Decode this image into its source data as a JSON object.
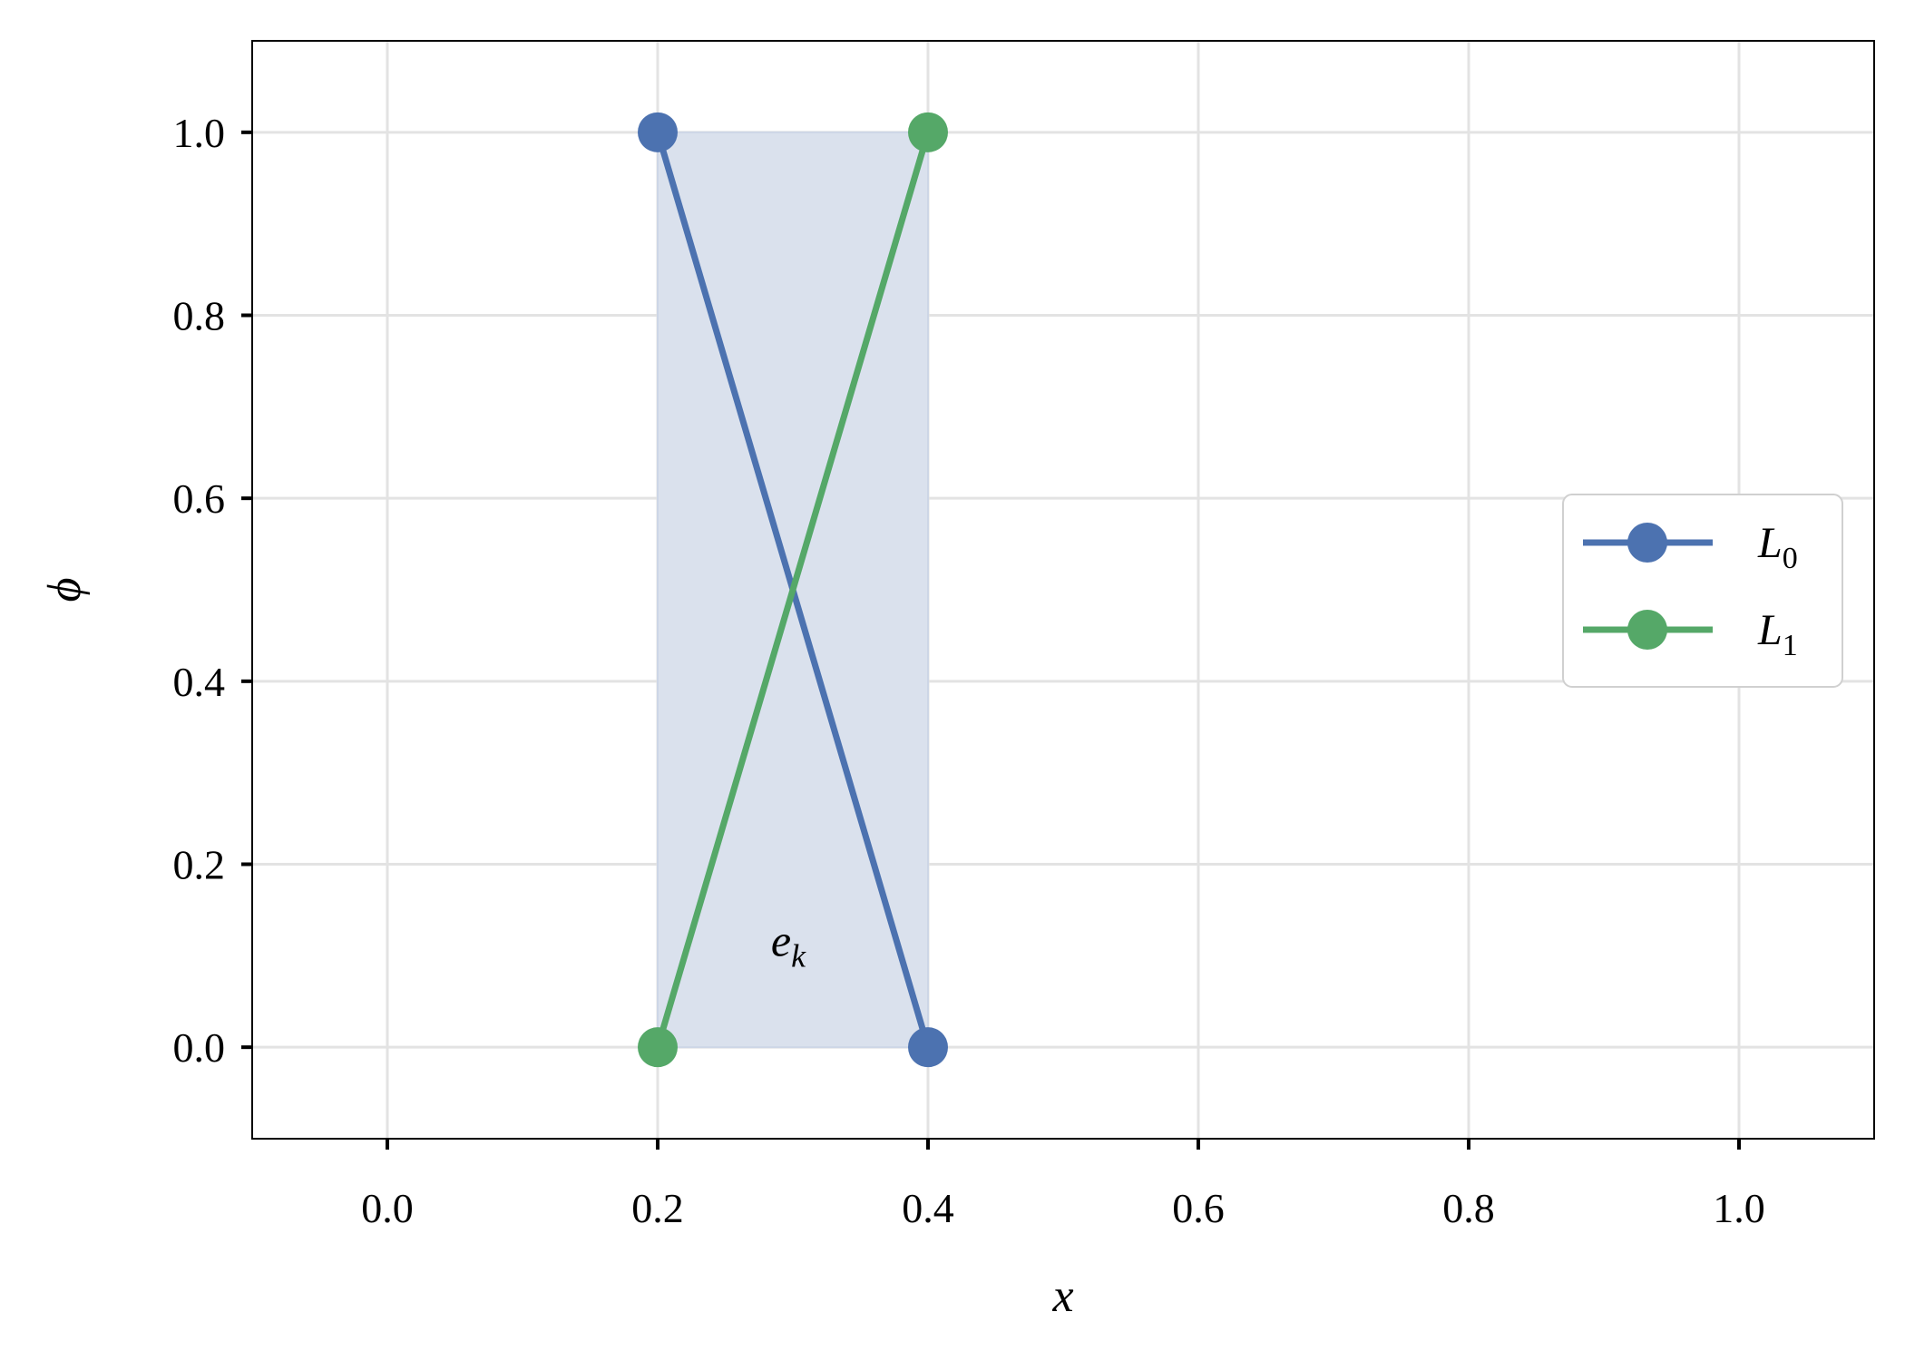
{
  "chart_data": {
    "type": "line",
    "xlabel": "x",
    "ylabel": "ϕ",
    "xlim": [
      -0.1,
      1.1
    ],
    "ylim": [
      -0.1,
      1.1
    ],
    "xticks": [
      0.0,
      0.2,
      0.4,
      0.6,
      0.8,
      1.0
    ],
    "yticks": [
      0.0,
      0.2,
      0.4,
      0.6,
      0.8,
      1.0
    ],
    "xtick_labels": [
      "0.0",
      "0.2",
      "0.4",
      "0.6",
      "0.8",
      "1.0"
    ],
    "ytick_labels": [
      "0.0",
      "0.2",
      "0.4",
      "0.6",
      "0.8",
      "1.0"
    ],
    "grid": true,
    "legend_position": "center-right",
    "shaded_region": {
      "x": [
        0.2,
        0.4
      ],
      "y": [
        0.0,
        1.0
      ],
      "color": "#dae1ed"
    },
    "annotation": {
      "main": "e",
      "sub": "k",
      "x": 0.3,
      "y": 0.1
    },
    "series": [
      {
        "name": "L",
        "name_sub": "0",
        "color": "#4c72b0",
        "x": [
          0.2,
          0.4
        ],
        "y": [
          1.0,
          0.0
        ]
      },
      {
        "name": "L",
        "name_sub": "1",
        "color": "#55a868",
        "x": [
          0.2,
          0.4
        ],
        "y": [
          0.0,
          1.0
        ]
      }
    ]
  }
}
